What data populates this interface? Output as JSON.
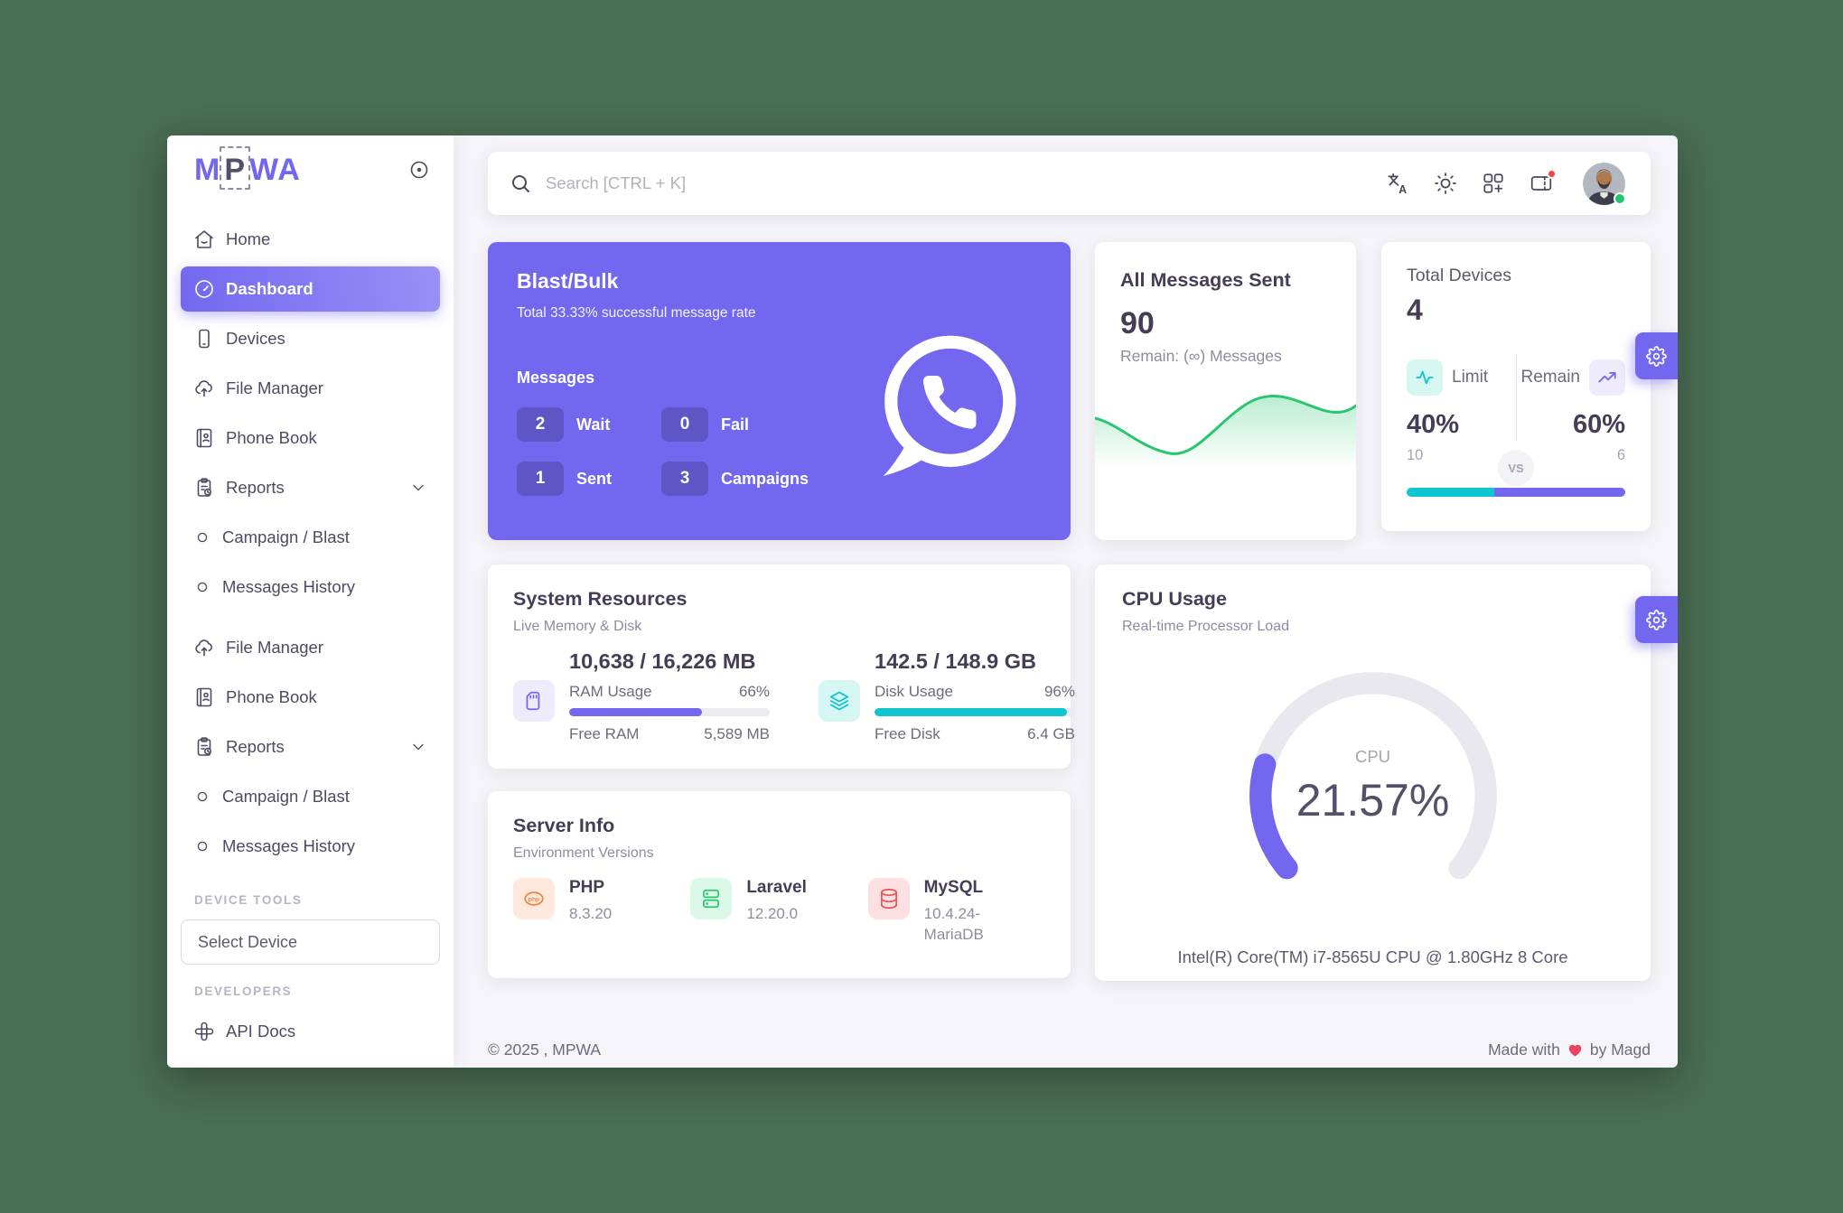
{
  "app": {
    "name": "MPWA",
    "logo_parts": {
      "m": "M",
      "p": "P",
      "wa": "WA"
    }
  },
  "colors": {
    "accent": "#7367f0",
    "teal": "#0fc6ce",
    "green": "#28c76f",
    "danger": "#ea4560",
    "frame_background": "#4a6e52"
  },
  "sidebar": {
    "items": [
      {
        "label": "Home",
        "icon": "home-icon"
      },
      {
        "label": "Dashboard",
        "icon": "dashboard-icon",
        "active": true
      },
      {
        "label": "Devices",
        "icon": "smartphone-icon"
      },
      {
        "label": "File Manager",
        "icon": "cloud-upload-icon"
      },
      {
        "label": "Phone Book",
        "icon": "phone-book-icon"
      },
      {
        "label": "Reports",
        "icon": "report-icon",
        "expandable": true
      },
      {
        "label": "Campaign / Blast",
        "icon": "circle-icon"
      },
      {
        "label": "Messages History",
        "icon": "circle-icon"
      },
      {
        "label": "File Manager",
        "icon": "cloud-upload-icon"
      },
      {
        "label": "Phone Book",
        "icon": "phone-book-icon"
      },
      {
        "label": "Reports",
        "icon": "report-icon",
        "expandable": true
      },
      {
        "label": "Campaign / Blast",
        "icon": "circle-icon"
      },
      {
        "label": "Messages History",
        "icon": "circle-icon"
      }
    ],
    "device_tools_header": "DEVICE TOOLS",
    "select_device_label": "Select Device",
    "developers_header": "DEVELOPERS",
    "api_docs_label": "API Docs"
  },
  "topbar": {
    "search_placeholder": "Search [CTRL + K]",
    "action_icons": [
      "language",
      "light-mode",
      "shortcuts",
      "notifications"
    ],
    "avatar_status": "online"
  },
  "cards": {
    "blast": {
      "title": "Blast/Bulk",
      "subtitle": "Total 33.33% successful message rate",
      "messages_label": "Messages",
      "stats": [
        {
          "value": "2",
          "label": "Wait"
        },
        {
          "value": "0",
          "label": "Fail"
        },
        {
          "value": "1",
          "label": "Sent"
        },
        {
          "value": "3",
          "label": "Campaigns"
        }
      ]
    },
    "all_messages": {
      "title": "All Messages Sent",
      "value": "90",
      "remain": "Remain: (∞) Messages",
      "chart_color": "#28c76f"
    },
    "devices": {
      "title": "Total Devices",
      "value": "4",
      "limit_label": "Limit",
      "remain_label": "Remain",
      "vs_label": "VS",
      "limit_percent": "40%",
      "remain_percent": "60%",
      "limit_count": "10",
      "remain_count": "6"
    },
    "system": {
      "title": "System Resources",
      "subtitle": "Live Memory & Disk",
      "ram": {
        "value": "10,638 / 16,226 MB",
        "label": "RAM Usage",
        "percent": "66%",
        "free_label": "Free RAM",
        "free_value": "5,589 MB"
      },
      "disk": {
        "value": "142.5 / 148.9 GB",
        "label": "Disk Usage",
        "percent": "96%",
        "free_label": "Free Disk",
        "free_value": "6.4 GB"
      }
    },
    "cpu": {
      "title": "CPU Usage",
      "subtitle": "Real-time Processor Load",
      "gauge_label": "CPU",
      "value": "21.57%",
      "caption": "Intel(R) Core(TM) i7-8565U CPU @ 1.80GHz 8 Core"
    },
    "server": {
      "title": "Server Info",
      "subtitle": "Environment Versions",
      "items": [
        {
          "name": "PHP",
          "version": "8.3.20"
        },
        {
          "name": "Laravel",
          "version": "12.20.0"
        },
        {
          "name": "MySQL",
          "version": "10.4.24-MariaDB"
        }
      ]
    }
  },
  "footer": {
    "copyright": "© 2025 , MPWA",
    "made_with": "Made with",
    "by": "by Magd"
  }
}
